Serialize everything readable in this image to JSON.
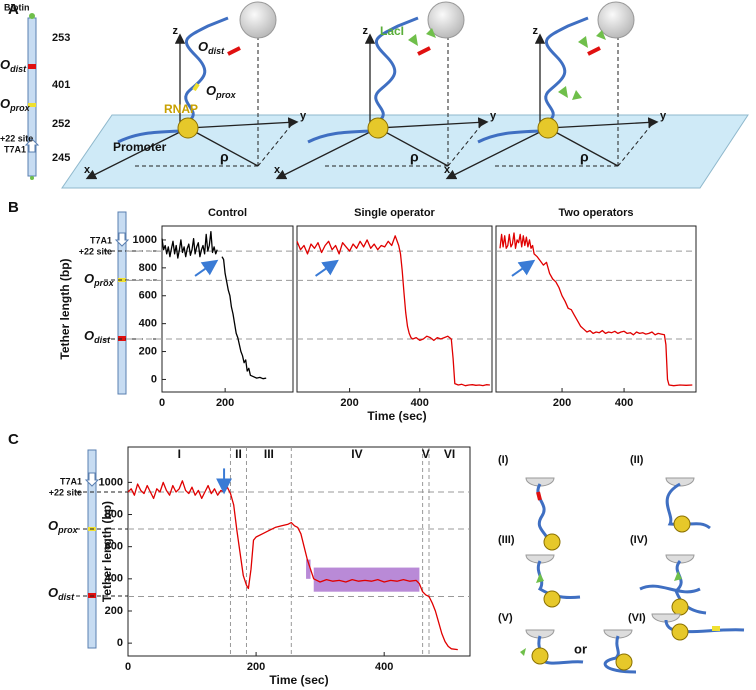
{
  "panel_a": {
    "label": "A",
    "dna": {
      "biotin": "Biotin",
      "odist": {
        "main": "O",
        "sub": "dist"
      },
      "oprox": {
        "main": "O",
        "sub": "prox"
      },
      "len1": "253",
      "len2": "401",
      "len3": "252",
      "len4": "245",
      "site": "+22 site",
      "t7a1": "T7A1"
    },
    "diagrams": [
      {
        "z": "z",
        "y": "y",
        "x": "x",
        "rho": "ρ",
        "odist": {
          "main": "O",
          "sub": "dist"
        },
        "oprox": {
          "main": "O",
          "sub": "prox"
        },
        "rnap": "RNAP",
        "promoter": "Promoter"
      },
      {
        "z": "z",
        "y": "y",
        "x": "x",
        "rho": "ρ",
        "laci": "LacI"
      },
      {
        "z": "z",
        "y": "y",
        "x": "x",
        "rho": "ρ"
      }
    ]
  },
  "panel_b": {
    "label": "B",
    "dna": {
      "t7a1": "T7A1",
      "site": "+22 site",
      "oprox": {
        "main": "O",
        "sub": "prox"
      },
      "odist": {
        "main": "O",
        "sub": "dist"
      }
    }
  },
  "panel_c": {
    "label": "C",
    "dna": {
      "t7a1": "T7A1",
      "site": "+22 site",
      "oprox": {
        "main": "O",
        "sub": "prox"
      },
      "odist": {
        "main": "O",
        "sub": "dist"
      }
    },
    "cartoons": [
      "(I)",
      "(II)",
      "(III)",
      "(IV)",
      "(V)",
      "(VI)"
    ],
    "or": "or"
  },
  "chart_data": [
    {
      "type": "line",
      "title": "Control",
      "ylabel": "Tether length (bp)",
      "color": "#000000",
      "xlim": [
        0,
        415
      ],
      "ylim": [
        -90,
        1100
      ],
      "xticks": [
        0,
        200
      ],
      "yticks": [
        0,
        200,
        400,
        600,
        800,
        1000
      ],
      "hlines": [
        920,
        710,
        290
      ],
      "arrow": [
        168,
        842
      ],
      "x": [
        0,
        5,
        10,
        15,
        20,
        25,
        30,
        35,
        40,
        45,
        50,
        55,
        60,
        65,
        70,
        75,
        80,
        85,
        90,
        95,
        100,
        105,
        110,
        115,
        120,
        125,
        130,
        135,
        140,
        145,
        150,
        155,
        160,
        165,
        170,
        175,
        182,
        190,
        195,
        200,
        205,
        210,
        215,
        220,
        225,
        230,
        235,
        240,
        250,
        255,
        260,
        265,
        270,
        275,
        280,
        290,
        300,
        310,
        320,
        330
      ],
      "values": [
        1010,
        930,
        960,
        900,
        950,
        880,
        940,
        990,
        900,
        960,
        870,
        930,
        1000,
        910,
        950,
        880,
        940,
        970,
        890,
        930,
        1010,
        900,
        950,
        980,
        880,
        930,
        960,
        900,
        1040,
        920,
        960,
        1060,
        910,
        950,
        900,
        930,
        null,
        880,
        860,
        760,
        700,
        640,
        600,
        520,
        470,
        400,
        330,
        300,
        200,
        170,
        120,
        140,
        60,
        80,
        30,
        20,
        10,
        15,
        5,
        10
      ]
    },
    {
      "type": "line",
      "title": "Single operator",
      "xlabel": "Time (sec)",
      "color": "#e00000",
      "xlim": [
        50,
        606
      ],
      "ylim": [
        -90,
        1100
      ],
      "xticks": [
        200,
        400
      ],
      "hlines": [
        920,
        710,
        290
      ],
      "arrow": [
        160,
        842
      ],
      "x": [
        50,
        60,
        70,
        80,
        90,
        100,
        110,
        120,
        130,
        140,
        150,
        160,
        170,
        180,
        190,
        200,
        210,
        220,
        230,
        240,
        250,
        260,
        270,
        280,
        290,
        300,
        310,
        320,
        330,
        340,
        345,
        350,
        355,
        360,
        365,
        370,
        375,
        380,
        390,
        400,
        410,
        420,
        430,
        440,
        450,
        460,
        470,
        480,
        490,
        495,
        500,
        510,
        520,
        530,
        540,
        550,
        560,
        570,
        580,
        590,
        600
      ],
      "values": [
        990,
        930,
        960,
        900,
        970,
        940,
        980,
        910,
        960,
        990,
        930,
        960,
        900,
        980,
        950,
        920,
        970,
        940,
        990,
        950,
        1000,
        940,
        970,
        930,
        960,
        950,
        990,
        960,
        1030,
        960,
        900,
        780,
        620,
        480,
        380,
        330,
        300,
        290,
        300,
        280,
        290,
        310,
        300,
        280,
        300,
        290,
        300,
        310,
        290,
        150,
        -30,
        -40,
        -35,
        -45,
        -40,
        -38,
        -42,
        -40,
        -44,
        -38,
        -40
      ]
    },
    {
      "type": "line",
      "title": "Two operators",
      "color": "#e00000",
      "xlim": [
        -13,
        632
      ],
      "ylim": [
        -90,
        1100
      ],
      "xticks": [
        200,
        400
      ],
      "hlines": [
        920,
        710,
        290
      ],
      "arrow": [
        103,
        842
      ],
      "x": [
        0,
        5,
        10,
        15,
        20,
        25,
        30,
        35,
        40,
        45,
        50,
        55,
        60,
        65,
        70,
        75,
        80,
        85,
        90,
        95,
        100,
        105,
        110,
        120,
        130,
        140,
        150,
        160,
        170,
        180,
        190,
        200,
        210,
        220,
        230,
        240,
        250,
        260,
        270,
        280,
        290,
        300,
        310,
        320,
        330,
        340,
        350,
        360,
        370,
        380,
        390,
        400,
        410,
        420,
        430,
        440,
        450,
        460,
        470,
        480,
        490,
        500,
        510,
        520,
        530,
        535,
        540,
        545,
        560,
        580,
        600,
        620
      ],
      "values": [
        940,
        1040,
        950,
        1030,
        940,
        960,
        1040,
        950,
        970,
        1050,
        940,
        1000,
        980,
        1040,
        950,
        1030,
        960,
        1020,
        950,
        1000,
        940,
        960,
        900,
        880,
        850,
        820,
        840,
        760,
        720,
        700,
        660,
        600,
        560,
        510,
        500,
        460,
        420,
        380,
        360,
        340,
        350,
        330,
        340,
        335,
        350,
        330,
        340,
        335,
        345,
        330,
        340,
        345,
        330,
        335,
        320,
        340,
        330,
        335,
        325,
        330,
        340,
        320,
        330,
        325,
        320,
        250,
        0,
        -40,
        -45,
        -40,
        -42,
        -40
      ]
    },
    {
      "type": "line",
      "ylabel": "Tether length (bp)",
      "xlabel": "Time (sec)",
      "color": "#e00000",
      "xlim": [
        0,
        534
      ],
      "ylim": [
        -80,
        1220
      ],
      "xticks": [
        0,
        200,
        400
      ],
      "yticks": [
        0,
        200,
        400,
        600,
        800,
        1000
      ],
      "hlines": [
        940,
        710,
        290
      ],
      "vlines": [
        160,
        185,
        255,
        460,
        470
      ],
      "phase_labels": [
        "I",
        "II",
        "III",
        "IV",
        "V",
        "VI"
      ],
      "arrow": [
        150,
        950
      ],
      "highlights": [
        {
          "x": [
            290,
            455
          ],
          "y": [
            320,
            470
          ]
        },
        {
          "x": [
            278,
            285
          ],
          "y": [
            400,
            520
          ]
        }
      ],
      "highlight_color": "#9b59c6",
      "x": [
        0,
        5,
        10,
        15,
        20,
        25,
        30,
        35,
        40,
        45,
        50,
        55,
        60,
        65,
        70,
        75,
        80,
        85,
        90,
        95,
        100,
        105,
        110,
        115,
        120,
        125,
        130,
        135,
        140,
        145,
        150,
        155,
        160,
        165,
        170,
        175,
        180,
        185,
        188,
        192,
        196,
        200,
        210,
        220,
        230,
        240,
        250,
        255,
        260,
        265,
        270,
        275,
        280,
        285,
        290,
        295,
        300,
        310,
        320,
        330,
        340,
        350,
        360,
        370,
        380,
        390,
        400,
        410,
        420,
        430,
        440,
        450,
        455,
        460,
        465,
        470,
        475,
        480,
        485,
        490,
        495,
        500,
        505,
        515
      ],
      "values": [
        940,
        960,
        920,
        990,
        950,
        930,
        980,
        940,
        900,
        960,
        940,
        1000,
        950,
        920,
        980,
        940,
        960,
        1010,
        950,
        930,
        970,
        920,
        950,
        900,
        940,
        980,
        930,
        960,
        920,
        950,
        940,
        970,
        930,
        860,
        700,
        560,
        420,
        360,
        340,
        460,
        640,
        660,
        680,
        700,
        720,
        730,
        740,
        750,
        730,
        720,
        680,
        600,
        520,
        460,
        400,
        390,
        380,
        395,
        385,
        390,
        380,
        395,
        385,
        390,
        385,
        395,
        380,
        390,
        385,
        395,
        385,
        390,
        370,
        320,
        300,
        290,
        250,
        200,
        130,
        60,
        10,
        -20,
        -35,
        -40
      ]
    }
  ]
}
